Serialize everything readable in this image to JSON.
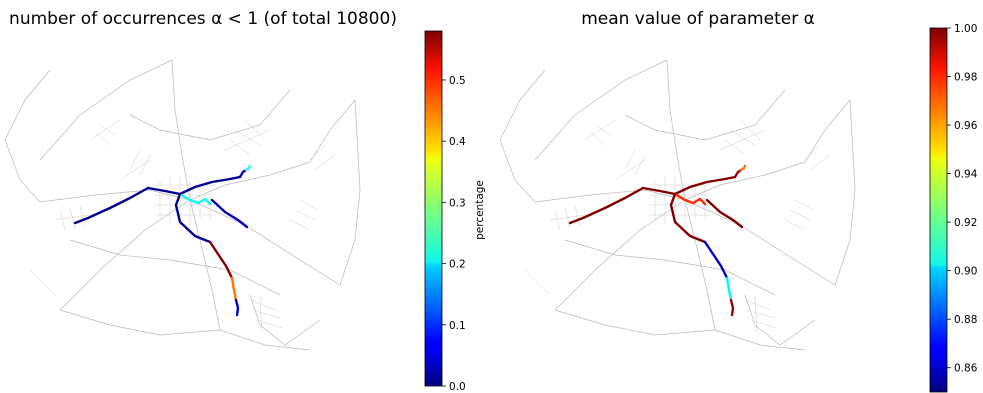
{
  "chart_data": [
    {
      "type": "map-colorbar",
      "title": "number of occurrences α < 1 (of total 10800)",
      "colorbar": {
        "label": "percentage",
        "range": [
          0.0,
          0.58
        ],
        "ticks": [
          0.0,
          0.1,
          0.2,
          0.3,
          0.4,
          0.5
        ],
        "tick_labels": [
          "0.0",
          "0.1",
          "0.2",
          "0.3",
          "0.4",
          "0.5"
        ],
        "colormap": "jet"
      },
      "segments": [
        {
          "name": "west-arm",
          "value": 0.01
        },
        {
          "name": "north-center",
          "value": 0.01
        },
        {
          "name": "north-east-upper",
          "value": 0.02
        },
        {
          "name": "north-east-tip",
          "value": 0.24
        },
        {
          "name": "east-arm",
          "value": 0.03
        },
        {
          "name": "center-cluster",
          "value": 0.22
        },
        {
          "name": "south-west-curve",
          "value": 0.01
        },
        {
          "name": "south-arm-upper",
          "value": 0.58
        },
        {
          "name": "south-arm-lower",
          "value": 0.44
        },
        {
          "name": "south-tip",
          "value": 0.05
        }
      ]
    },
    {
      "type": "map-colorbar",
      "title": "mean value of parameter α",
      "colorbar": {
        "label": "",
        "range": [
          0.85,
          1.0
        ],
        "ticks": [
          0.86,
          0.88,
          0.9,
          0.92,
          0.94,
          0.96,
          0.98,
          1.0
        ],
        "tick_labels": [
          "0.86",
          "0.88",
          "0.90",
          "0.92",
          "0.94",
          "0.96",
          "0.98",
          "1.00"
        ],
        "colormap": "jet"
      },
      "segments": [
        {
          "name": "west-arm",
          "value": 1.0
        },
        {
          "name": "north-center",
          "value": 1.0
        },
        {
          "name": "north-east-upper",
          "value": 0.995
        },
        {
          "name": "north-east-tip",
          "value": 0.965
        },
        {
          "name": "east-arm",
          "value": 1.0
        },
        {
          "name": "center-cluster",
          "value": 0.975
        },
        {
          "name": "south-west-curve",
          "value": 1.0
        },
        {
          "name": "south-arm-upper",
          "value": 0.86
        },
        {
          "name": "south-arm-lower",
          "value": 0.905
        },
        {
          "name": "south-tip",
          "value": 0.995
        }
      ]
    }
  ]
}
